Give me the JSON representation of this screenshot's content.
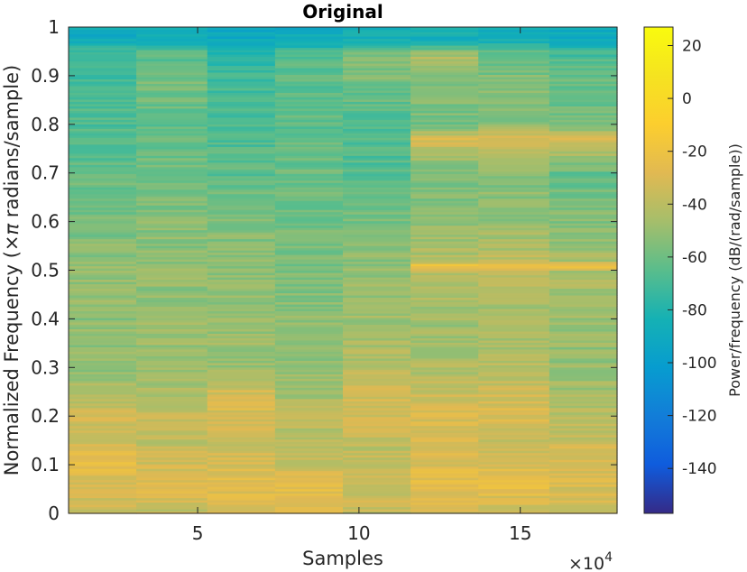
{
  "chart_data": {
    "type": "heatmap",
    "title": "Original",
    "xlabel": "Samples",
    "ylabel_prefix": "Normalized Frequency (",
    "ylabel_symbol": "×π",
    "ylabel_suffix": " radians/sample)",
    "x_exponent_base": "×10",
    "x_exponent_power": "4",
    "x_ticks": [
      {
        "value": 5,
        "label": "5"
      },
      {
        "value": 10,
        "label": "10"
      },
      {
        "value": 15,
        "label": "15"
      }
    ],
    "y_ticks": [
      {
        "value": 0,
        "label": "0"
      },
      {
        "value": 0.1,
        "label": "0.1"
      },
      {
        "value": 0.2,
        "label": "0.2"
      },
      {
        "value": 0.3,
        "label": "0.3"
      },
      {
        "value": 0.4,
        "label": "0.4"
      },
      {
        "value": 0.5,
        "label": "0.5"
      },
      {
        "value": 0.6,
        "label": "0.6"
      },
      {
        "value": 0.7,
        "label": "0.7"
      },
      {
        "value": 0.8,
        "label": "0.8"
      },
      {
        "value": 0.9,
        "label": "0.9"
      },
      {
        "value": 1,
        "label": "1"
      }
    ],
    "xlim": [
      1.0,
      18.0
    ],
    "ylim": [
      0,
      1
    ],
    "time_segment_edges": [
      1.0,
      3.1,
      5.3,
      7.4,
      9.5,
      11.6,
      13.7,
      15.9,
      18.0
    ],
    "colorbar": {
      "label": "Power/frequency (dB/(rad/sample))",
      "lim": [
        -157,
        27
      ],
      "ticks": [
        {
          "value": 20,
          "label": "20"
        },
        {
          "value": 0,
          "label": "0"
        },
        {
          "value": -20,
          "label": "-20"
        },
        {
          "value": -40,
          "label": "-40"
        },
        {
          "value": -60,
          "label": "-60"
        },
        {
          "value": -80,
          "label": "-80"
        },
        {
          "value": -100,
          "label": "-100"
        },
        {
          "value": -120,
          "label": "-120"
        },
        {
          "value": -140,
          "label": "-140"
        }
      ],
      "colormap": "parula"
    },
    "segment_profiles": [
      [
        [
          0.0,
          -38
        ],
        [
          0.05,
          -32
        ],
        [
          0.08,
          -30
        ],
        [
          0.1,
          -22
        ],
        [
          0.13,
          -30
        ],
        [
          0.17,
          -38
        ],
        [
          0.2,
          -32
        ],
        [
          0.25,
          -44
        ],
        [
          0.3,
          -50
        ],
        [
          0.4,
          -52
        ],
        [
          0.5,
          -50
        ],
        [
          0.6,
          -58
        ],
        [
          0.7,
          -62
        ],
        [
          0.8,
          -68
        ],
        [
          0.9,
          -70
        ],
        [
          0.95,
          -72
        ],
        [
          0.97,
          -88
        ],
        [
          1.0,
          -90
        ]
      ],
      [
        [
          0.0,
          -38
        ],
        [
          0.05,
          -30
        ],
        [
          0.1,
          -32
        ],
        [
          0.15,
          -40
        ],
        [
          0.2,
          -36
        ],
        [
          0.25,
          -44
        ],
        [
          0.3,
          -48
        ],
        [
          0.4,
          -50
        ],
        [
          0.5,
          -52
        ],
        [
          0.6,
          -54
        ],
        [
          0.7,
          -58
        ],
        [
          0.8,
          -62
        ],
        [
          0.9,
          -58
        ],
        [
          0.95,
          -66
        ],
        [
          0.97,
          -86
        ],
        [
          1.0,
          -88
        ]
      ],
      [
        [
          0.0,
          -34
        ],
        [
          0.06,
          -26
        ],
        [
          0.1,
          -30
        ],
        [
          0.15,
          -38
        ],
        [
          0.2,
          -30
        ],
        [
          0.25,
          -32
        ],
        [
          0.3,
          -48
        ],
        [
          0.4,
          -50
        ],
        [
          0.5,
          -52
        ],
        [
          0.6,
          -56
        ],
        [
          0.7,
          -64
        ],
        [
          0.8,
          -70
        ],
        [
          0.9,
          -72
        ],
        [
          0.95,
          -78
        ],
        [
          0.97,
          -90
        ],
        [
          1.0,
          -92
        ]
      ],
      [
        [
          0.0,
          -30
        ],
        [
          0.05,
          -26
        ],
        [
          0.1,
          -36
        ],
        [
          0.15,
          -42
        ],
        [
          0.2,
          -40
        ],
        [
          0.25,
          -46
        ],
        [
          0.3,
          -50
        ],
        [
          0.4,
          -52
        ],
        [
          0.5,
          -56
        ],
        [
          0.6,
          -58
        ],
        [
          0.7,
          -60
        ],
        [
          0.8,
          -64
        ],
        [
          0.9,
          -64
        ],
        [
          0.95,
          -68
        ],
        [
          0.97,
          -88
        ],
        [
          1.0,
          -90
        ]
      ],
      [
        [
          0.0,
          -36
        ],
        [
          0.05,
          -34
        ],
        [
          0.1,
          -36
        ],
        [
          0.15,
          -40
        ],
        [
          0.2,
          -32
        ],
        [
          0.25,
          -34
        ],
        [
          0.3,
          -42
        ],
        [
          0.4,
          -48
        ],
        [
          0.5,
          -50
        ],
        [
          0.6,
          -58
        ],
        [
          0.7,
          -66
        ],
        [
          0.8,
          -68
        ],
        [
          0.9,
          -56
        ],
        [
          0.95,
          -54
        ],
        [
          0.97,
          -86
        ],
        [
          1.0,
          -88
        ]
      ],
      [
        [
          0.0,
          -32
        ],
        [
          0.08,
          -24
        ],
        [
          0.1,
          -30
        ],
        [
          0.15,
          -32
        ],
        [
          0.2,
          -30
        ],
        [
          0.25,
          -36
        ],
        [
          0.3,
          -44
        ],
        [
          0.4,
          -48
        ],
        [
          0.5,
          -40
        ],
        [
          0.51,
          -14
        ],
        [
          0.52,
          -42
        ],
        [
          0.6,
          -52
        ],
        [
          0.7,
          -58
        ],
        [
          0.77,
          -30
        ],
        [
          0.8,
          -58
        ],
        [
          0.9,
          -52
        ],
        [
          0.94,
          -42
        ],
        [
          0.97,
          -84
        ],
        [
          1.0,
          -86
        ]
      ],
      [
        [
          0.0,
          -36
        ],
        [
          0.05,
          -26
        ],
        [
          0.1,
          -30
        ],
        [
          0.15,
          -36
        ],
        [
          0.2,
          -30
        ],
        [
          0.25,
          -34
        ],
        [
          0.3,
          -42
        ],
        [
          0.4,
          -46
        ],
        [
          0.5,
          -40
        ],
        [
          0.51,
          -14
        ],
        [
          0.52,
          -40
        ],
        [
          0.6,
          -50
        ],
        [
          0.7,
          -56
        ],
        [
          0.77,
          -30
        ],
        [
          0.8,
          -52
        ],
        [
          0.9,
          -56
        ],
        [
          0.95,
          -62
        ],
        [
          0.97,
          -86
        ],
        [
          1.0,
          -88
        ]
      ],
      [
        [
          0.0,
          -34
        ],
        [
          0.05,
          -30
        ],
        [
          0.1,
          -32
        ],
        [
          0.13,
          -28
        ],
        [
          0.15,
          -38
        ],
        [
          0.2,
          -40
        ],
        [
          0.25,
          -46
        ],
        [
          0.3,
          -50
        ],
        [
          0.4,
          -50
        ],
        [
          0.5,
          -44
        ],
        [
          0.51,
          -14
        ],
        [
          0.52,
          -46
        ],
        [
          0.6,
          -54
        ],
        [
          0.7,
          -62
        ],
        [
          0.77,
          -30
        ],
        [
          0.8,
          -60
        ],
        [
          0.9,
          -62
        ],
        [
          0.95,
          -70
        ],
        [
          0.97,
          -88
        ],
        [
          1.0,
          -90
        ]
      ]
    ]
  }
}
